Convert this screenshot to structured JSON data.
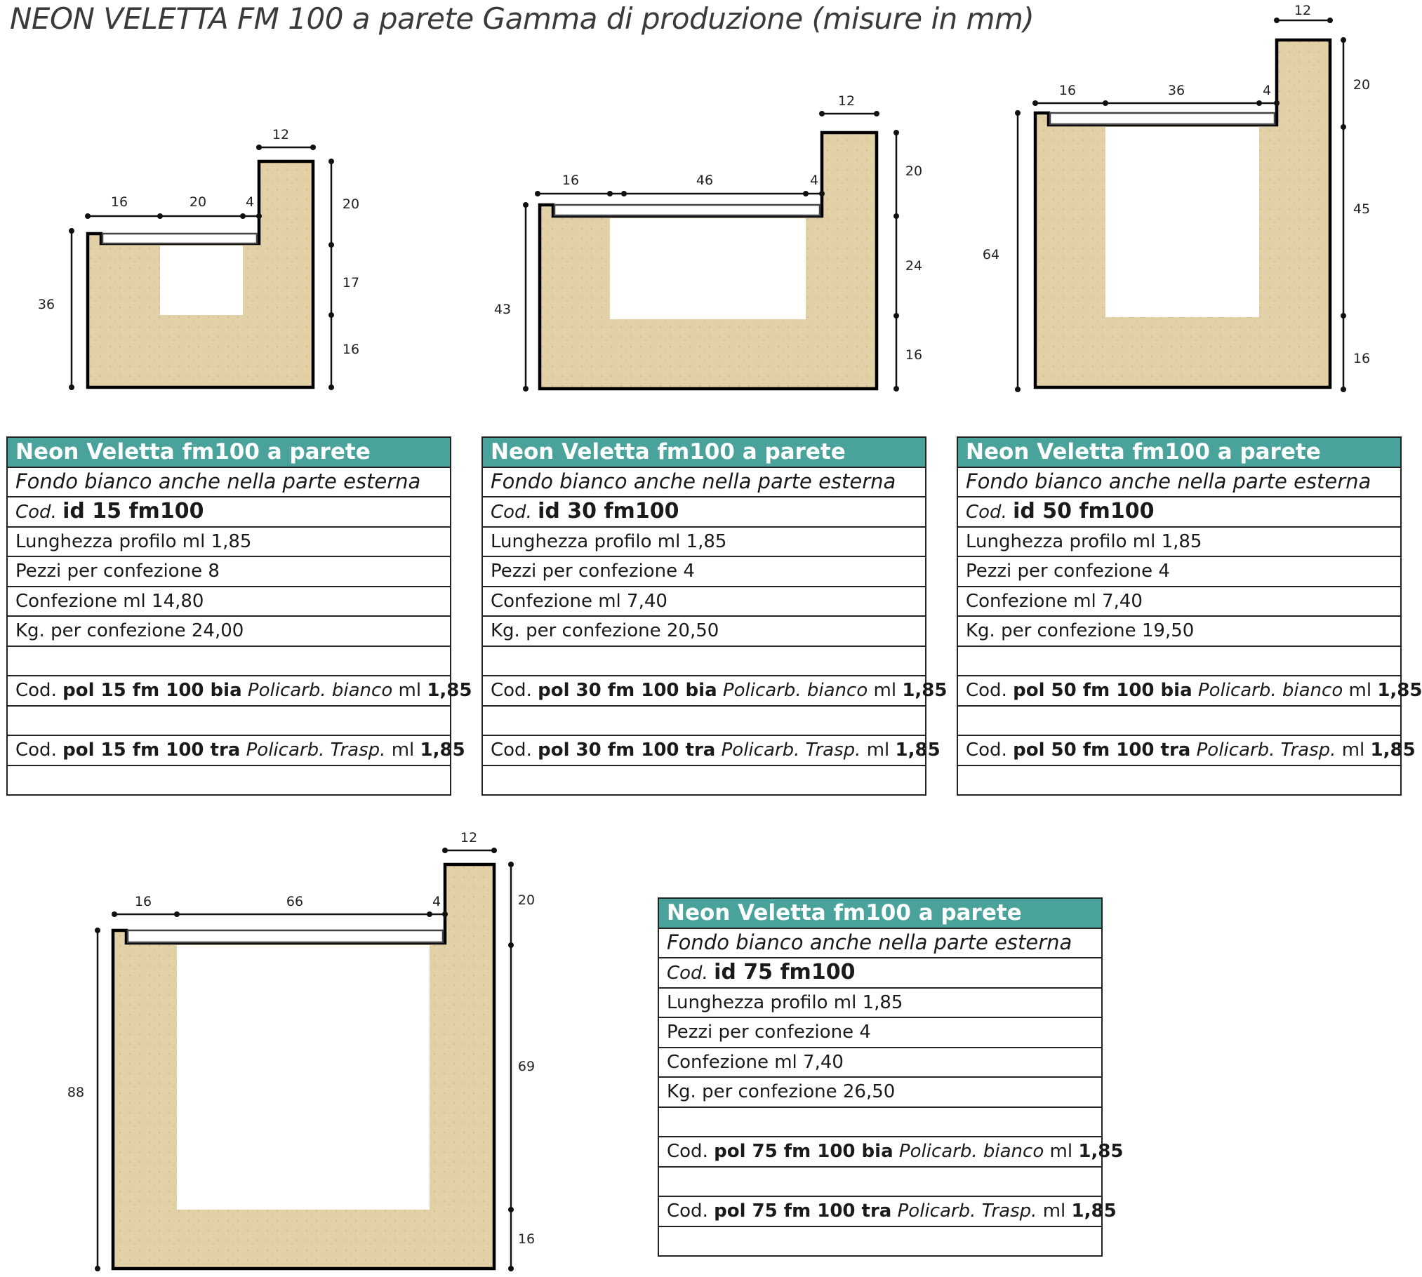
{
  "title": "NEON VELETTA FM 100 a parete Gamma di produzione  (misure in mm)",
  "diagrams": [
    {
      "name": "id 15",
      "dims": {
        "height": "36",
        "top_width": "12",
        "inner_left": "16",
        "inner_mid": "20",
        "inner_right": "4",
        "right_top": "20",
        "right_mid": "17",
        "right_bottom": "16"
      }
    },
    {
      "name": "id 30",
      "dims": {
        "height": "43",
        "top_width": "12",
        "inner_left": "16",
        "inner_mid": "46",
        "inner_right": "4",
        "right_top": "20",
        "right_mid": "24",
        "right_bottom": "16"
      }
    },
    {
      "name": "id 50",
      "dims": {
        "height": "64",
        "top_width": "12",
        "inner_left": "16",
        "inner_mid": "36",
        "inner_right": "4",
        "right_top": "20",
        "right_mid": "45",
        "right_bottom": "16"
      }
    },
    {
      "name": "id 75",
      "dims": {
        "height": "88",
        "top_width": "12",
        "inner_left": "16",
        "inner_mid": "66",
        "inner_right": "4",
        "right_top": "20",
        "right_mid": "69",
        "right_bottom": "16"
      }
    }
  ],
  "tables": [
    {
      "header": "Neon Veletta fm100 a parete",
      "subtitle": "Fondo bianco anche nella parte esterna",
      "cod_label": "Cod.",
      "cod_value": "id 15 fm100",
      "length": "Lunghezza profilo ml 1,85",
      "pieces": "Pezzi per confezione 8",
      "package": "Confezione ml 14,80",
      "weight": "Kg. per confezione 24,00",
      "pol_bia": {
        "prefix": "Cod.",
        "code": "pol 15 fm 100 bia",
        "desc": "Policarb. bianco",
        "unit": "ml",
        "value": "1,85"
      },
      "pol_tra": {
        "prefix": "Cod.",
        "code": "pol 15 fm 100 tra",
        "desc": "Policarb. Trasp.",
        "unit": "ml",
        "value": "1,85"
      }
    },
    {
      "header": "Neon Veletta fm100 a parete",
      "subtitle": "Fondo bianco anche nella parte esterna",
      "cod_label": "Cod.",
      "cod_value": "id 30 fm100",
      "length": "Lunghezza profilo ml 1,85",
      "pieces": "Pezzi per confezione 4",
      "package": "Confezione ml 7,40",
      "weight": "Kg. per confezione 20,50",
      "pol_bia": {
        "prefix": "Cod.",
        "code": "pol 30 fm 100 bia",
        "desc": "Policarb. bianco",
        "unit": "ml",
        "value": "1,85"
      },
      "pol_tra": {
        "prefix": "Cod.",
        "code": "pol 30 fm 100 tra",
        "desc": "Policarb. Trasp.",
        "unit": "ml",
        "value": "1,85"
      }
    },
    {
      "header": "Neon Veletta fm100 a parete",
      "subtitle": "Fondo bianco anche nella parte esterna",
      "cod_label": "Cod.",
      "cod_value": "id 50 fm100",
      "length": "Lunghezza profilo ml 1,85",
      "pieces": "Pezzi per confezione 4",
      "package": "Confezione ml 7,40",
      "weight": "Kg. per confezione 19,50",
      "pol_bia": {
        "prefix": "Cod.",
        "code": "pol 50 fm 100 bia",
        "desc": "Policarb. bianco",
        "unit": "ml",
        "value": "1,85"
      },
      "pol_tra": {
        "prefix": "Cod.",
        "code": "pol 50 fm 100 tra",
        "desc": "Policarb. Trasp.",
        "unit": "ml",
        "value": "1,85"
      }
    },
    {
      "header": "Neon Veletta fm100 a parete",
      "subtitle": "Fondo bianco anche nella parte esterna",
      "cod_label": "Cod.",
      "cod_value": "id 75 fm100",
      "length": "Lunghezza profilo ml 1,85",
      "pieces": "Pezzi per confezione 4",
      "package": "Confezione ml 7,40",
      "weight": "Kg. per confezione 26,50",
      "pol_bia": {
        "prefix": "Cod.",
        "code": "pol 75 fm 100 bia",
        "desc": "Policarb. bianco",
        "unit": "ml",
        "value": "1,85"
      },
      "pol_tra": {
        "prefix": "Cod.",
        "code": "pol 75 fm 100 tra",
        "desc": "Policarb. Trasp.",
        "unit": "ml",
        "value": "1,85"
      }
    }
  ],
  "colors": {
    "header_bg": "#4aa39a",
    "mdf": "#e2d0a6"
  }
}
